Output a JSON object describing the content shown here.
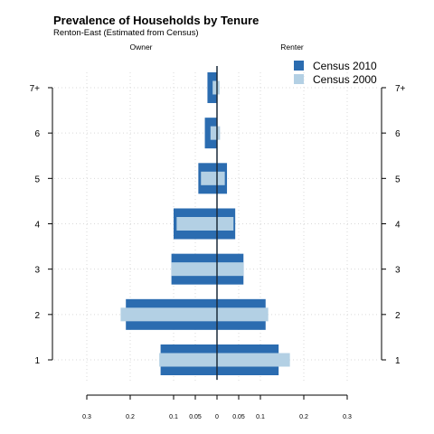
{
  "chart_data": {
    "type": "bar",
    "subtype": "population-pyramid",
    "title": "Prevalence of Households by Tenure",
    "subtitle": "Renton-East (Estimated from Census)",
    "left_label": "Owner",
    "right_label": "Renter",
    "categories": [
      "1",
      "2",
      "3",
      "4",
      "5",
      "6",
      "7+"
    ],
    "x_ticks": [
      {
        "label": "0.3",
        "value": -0.3
      },
      {
        "label": "0.2",
        "value": -0.2
      },
      {
        "label": "0.1",
        "value": -0.1
      },
      {
        "label": "0.05",
        "value": -0.05
      },
      {
        "label": "0",
        "value": 0
      },
      {
        "label": "0.05",
        "value": 0.05
      },
      {
        "label": "0.1",
        "value": 0.1
      },
      {
        "label": "0.2",
        "value": 0.2
      },
      {
        "label": "0.3",
        "value": 0.3
      }
    ],
    "xlim": [
      -0.3,
      0.3
    ],
    "grid": true,
    "legend_position": "top-right",
    "series": [
      {
        "name": "Census 2010",
        "color": "#2b6cb0",
        "owner": [
          0.13,
          0.21,
          0.105,
          0.1,
          0.043,
          0.028,
          0.022
        ],
        "renter": [
          0.142,
          0.112,
          0.061,
          0.042,
          0.023,
          0.001,
          0.001
        ]
      },
      {
        "name": "Census 2000",
        "color": "#b3d0e4",
        "owner": [
          0.133,
          0.222,
          0.105,
          0.093,
          0.037,
          0.015,
          0.01
        ],
        "renter": [
          0.168,
          0.118,
          0.061,
          0.038,
          0.018,
          0.007,
          0.006
        ]
      }
    ]
  }
}
